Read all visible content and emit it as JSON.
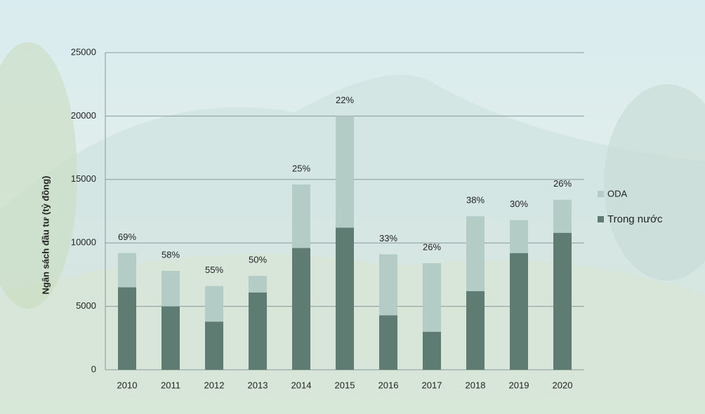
{
  "chart_data": {
    "type": "stacked-bar",
    "y_label": "Ngân sách đầu tư (tỷ đồng)",
    "categories": [
      "2010",
      "2011",
      "2012",
      "2013",
      "2014",
      "2015",
      "2016",
      "2017",
      "2018",
      "2019",
      "2020"
    ],
    "series": [
      {
        "name": "Trong nước",
        "color": "#5e7c71",
        "values": [
          6500,
          5000,
          3800,
          6100,
          9600,
          11200,
          4300,
          3000,
          6200,
          9200,
          10800
        ]
      },
      {
        "name": "ODA",
        "color": "#b3ccc6",
        "values": [
          2700,
          2800,
          2800,
          1300,
          5000,
          8800,
          4800,
          5400,
          5900,
          2600,
          2600
        ]
      }
    ],
    "annotations": [
      "69%",
      "58%",
      "55%",
      "50%",
      "25%",
      "22%",
      "33%",
      "26%",
      "38%",
      "30%",
      "26%"
    ],
    "ylim": [
      0,
      25000
    ],
    "yticks": [
      0,
      5000,
      10000,
      15000,
      20000,
      25000
    ],
    "grid": true,
    "legend": "right"
  }
}
